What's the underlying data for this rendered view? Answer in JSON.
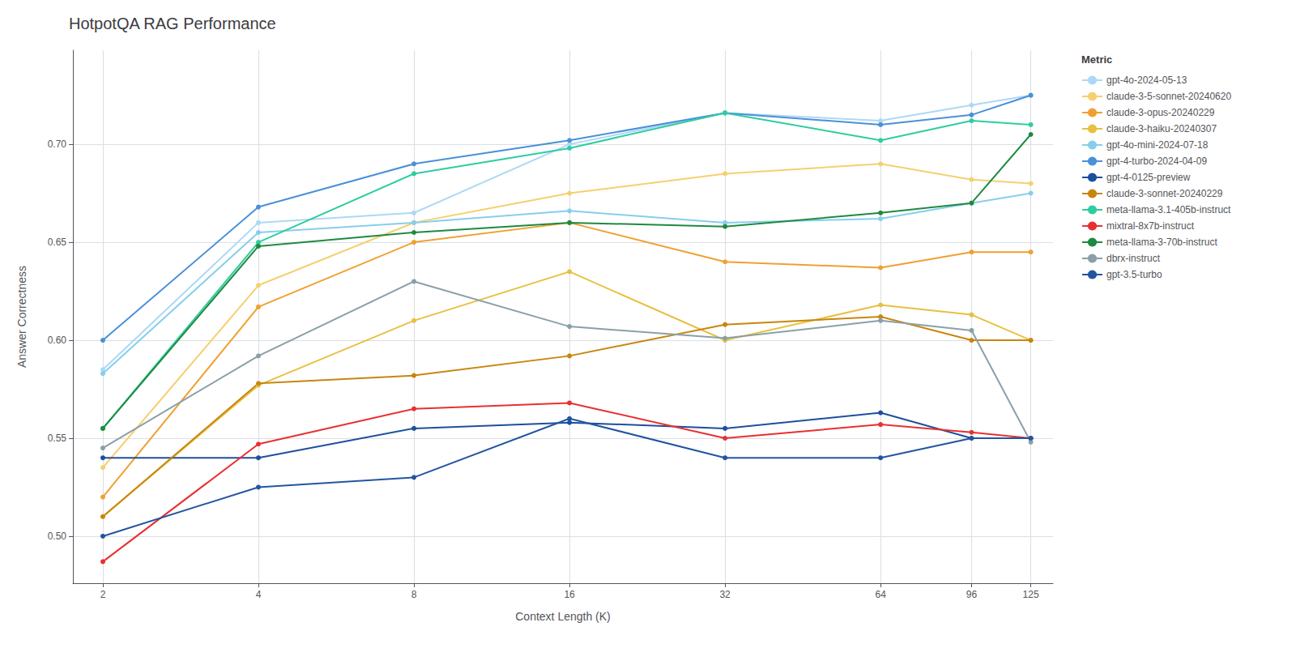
{
  "chart_data": {
    "type": "line",
    "title": "HotpotQA RAG Performance",
    "x_label": "Context Length (K)",
    "y_label": "Answer Correctness",
    "legend_title": "Metric",
    "x": [
      2,
      4,
      8,
      16,
      32,
      64,
      96,
      125
    ],
    "series": [
      {
        "name": "gpt-4o-2024-05-13",
        "color": "#add8f5",
        "values": [
          0.585,
          0.66,
          0.665,
          0.7,
          0.716,
          0.712,
          0.72,
          0.725
        ]
      },
      {
        "name": "claude-3-5-sonnet-20240620",
        "color": "#f5d070",
        "values": [
          0.535,
          0.628,
          0.66,
          0.675,
          0.685,
          0.69,
          0.682,
          0.68
        ]
      },
      {
        "name": "claude-3-opus-20240229",
        "color": "#f0a030",
        "values": [
          0.52,
          0.617,
          0.65,
          0.66,
          0.64,
          0.637,
          0.645,
          0.645
        ]
      },
      {
        "name": "claude-3-haiku-20240307",
        "color": "#e8c040",
        "values": [
          0.51,
          0.577,
          0.61,
          0.635,
          0.6,
          0.618,
          0.613,
          0.6
        ]
      },
      {
        "name": "gpt-4o-mini-2024-07-18",
        "color": "#87ceeb",
        "values": [
          0.583,
          0.655,
          0.66,
          0.666,
          0.66,
          0.662,
          0.67,
          0.675
        ]
      },
      {
        "name": "gpt-4-turbo-2024-04-09",
        "color": "#4a90d9",
        "values": [
          0.6,
          0.668,
          0.69,
          0.702,
          0.716,
          0.71,
          0.715,
          0.725
        ]
      },
      {
        "name": "gpt-4-0125-preview",
        "color": "#1e4f9c",
        "values": [
          0.54,
          0.54,
          0.555,
          0.558,
          0.555,
          0.563,
          0.55,
          0.55
        ]
      },
      {
        "name": "claude-3-sonnet-20240229",
        "color": "#c8860e",
        "values": [
          0.51,
          0.578,
          0.582,
          0.592,
          0.608,
          0.612,
          0.6,
          0.6
        ]
      },
      {
        "name": "meta-llama-3.1-405b-instruct",
        "color": "#2ecda0",
        "values": [
          0.555,
          0.65,
          0.685,
          0.698,
          0.716,
          0.702,
          0.712,
          0.71
        ]
      },
      {
        "name": "mixtral-8x7b-instruct",
        "color": "#e83030",
        "values": [
          0.487,
          0.547,
          0.565,
          0.568,
          0.55,
          0.557,
          0.553,
          0.55
        ]
      },
      {
        "name": "meta-llama-3-70b-instruct",
        "color": "#1e8a40",
        "values": [
          0.555,
          0.648,
          0.655,
          0.66,
          0.658,
          0.665,
          0.67,
          0.705
        ]
      },
      {
        "name": "dbrx-instruct",
        "color": "#8aa0a8",
        "values": [
          0.545,
          0.592,
          0.63,
          0.607,
          0.601,
          0.61,
          0.605,
          0.548
        ]
      },
      {
        "name": "gpt-3.5-turbo",
        "color": "#2255a0",
        "values": [
          0.5,
          0.525,
          0.53,
          0.56,
          0.54,
          0.54,
          0.55,
          0.55
        ]
      }
    ],
    "xlim": [
      1.75,
      138
    ],
    "xticks": [
      2,
      4,
      8,
      16,
      32,
      64,
      96,
      125
    ],
    "ylim": [
      0.476,
      0.748
    ],
    "yticks": [
      {
        "value": 0.5,
        "label": "0.50"
      },
      0.55,
      {
        "value": 0.6,
        "label": "0.60"
      },
      0.65,
      {
        "value": 0.7,
        "label": "0.70"
      }
    ],
    "log": "x",
    "grid": true,
    "legend": "right",
    "marker": "circle"
  }
}
